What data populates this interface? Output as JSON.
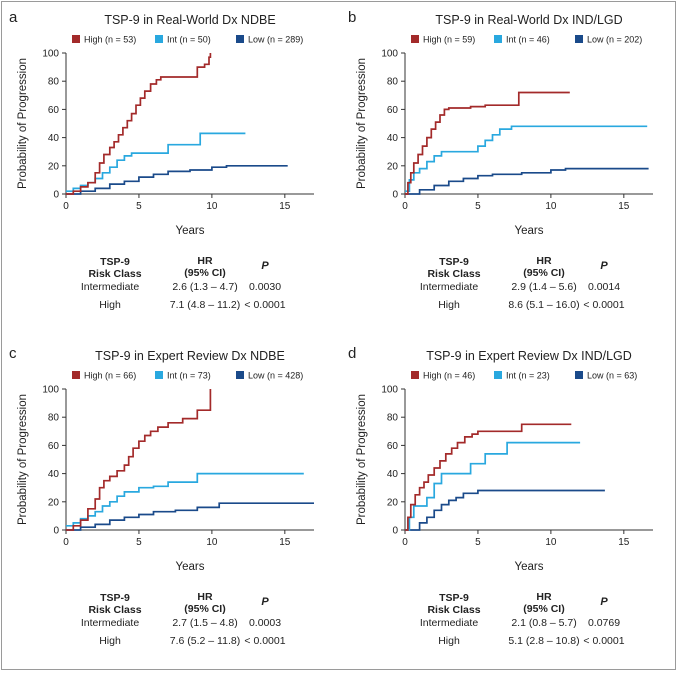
{
  "figure": {
    "table_headers": {
      "risk_class_line1": "TSP-9",
      "risk_class_line2": "Risk Class",
      "hr_line1": "HR",
      "hr_line2": "(95% CI)",
      "p": "P"
    },
    "rows": [
      "Intermediate",
      "High"
    ]
  },
  "chart_data": [
    {
      "letter": "a",
      "type": "line",
      "title": "TSP-9 in Real-World Dx NDBE",
      "xlabel": "Years",
      "ylabel": "Probability of Progression",
      "xlim": [
        0,
        17
      ],
      "ylim": [
        0,
        100
      ],
      "xticks": [
        0,
        5,
        10,
        15
      ],
      "yticks": [
        0,
        20,
        40,
        60,
        80,
        100
      ],
      "legend": [
        "High (n = 53)",
        "Int (n = 50)",
        "Low (n = 289)"
      ],
      "colors": [
        "#a32a2a",
        "#29a8df",
        "#1a4a8a"
      ],
      "series": [
        {
          "name": "High",
          "color": "#a32a2a",
          "points": [
            [
              0,
              0
            ],
            [
              0.5,
              2
            ],
            [
              1,
              5
            ],
            [
              1.5,
              8
            ],
            [
              2,
              15
            ],
            [
              2.3,
              22
            ],
            [
              2.6,
              28
            ],
            [
              3,
              33
            ],
            [
              3.3,
              37
            ],
            [
              3.6,
              42
            ],
            [
              3.9,
              47
            ],
            [
              4.2,
              52
            ],
            [
              4.5,
              57
            ],
            [
              4.8,
              63
            ],
            [
              5.1,
              68
            ],
            [
              5.4,
              73
            ],
            [
              5.8,
              78
            ],
            [
              6.2,
              81
            ],
            [
              6.5,
              83
            ],
            [
              9,
              83
            ],
            [
              9,
              90
            ],
            [
              9.5,
              92
            ],
            [
              9.8,
              97
            ],
            [
              9.9,
              100
            ]
          ]
        },
        {
          "name": "Int",
          "color": "#29a8df",
          "points": [
            [
              0,
              2
            ],
            [
              0.5,
              4
            ],
            [
              1,
              6
            ],
            [
              1.5,
              8
            ],
            [
              2,
              11
            ],
            [
              2.5,
              15
            ],
            [
              3,
              19
            ],
            [
              3.5,
              24
            ],
            [
              4,
              27
            ],
            [
              4.5,
              29
            ],
            [
              7,
              29
            ],
            [
              7,
              35
            ],
            [
              9.2,
              35
            ],
            [
              9.2,
              43
            ],
            [
              12.3,
              43
            ]
          ]
        },
        {
          "name": "Low",
          "color": "#1a4a8a",
          "points": [
            [
              0,
              0
            ],
            [
              1,
              2
            ],
            [
              2,
              4
            ],
            [
              3,
              7
            ],
            [
              4,
              9
            ],
            [
              5,
              12
            ],
            [
              6,
              14
            ],
            [
              7,
              16
            ],
            [
              8.5,
              17
            ],
            [
              10,
              19
            ],
            [
              11,
              20
            ],
            [
              15.2,
              20
            ]
          ]
        }
      ],
      "hr_rows": [
        {
          "label": "Intermediate",
          "hr": "2.6 (1.3 – 4.7)",
          "p": "0.0030"
        },
        {
          "label": "High",
          "hr": "7.1 (4.8 – 11.2)",
          "p": "< 0.0001"
        }
      ]
    },
    {
      "letter": "b",
      "type": "line",
      "title": "TSP-9 in Real-World Dx IND/LGD",
      "xlabel": "Years",
      "ylabel": "Probability of Progression",
      "xlim": [
        0,
        17
      ],
      "ylim": [
        0,
        100
      ],
      "xticks": [
        0,
        5,
        10,
        15
      ],
      "yticks": [
        0,
        20,
        40,
        60,
        80,
        100
      ],
      "legend": [
        "High (n = 59)",
        "Int (n = 46)",
        "Low (n = 202)"
      ],
      "colors": [
        "#a32a2a",
        "#29a8df",
        "#1a4a8a"
      ],
      "series": [
        {
          "name": "High",
          "color": "#a32a2a",
          "points": [
            [
              0,
              0
            ],
            [
              0.2,
              8
            ],
            [
              0.4,
              15
            ],
            [
              0.6,
              22
            ],
            [
              0.9,
              28
            ],
            [
              1.2,
              34
            ],
            [
              1.5,
              40
            ],
            [
              1.8,
              46
            ],
            [
              2.1,
              51
            ],
            [
              2.4,
              56
            ],
            [
              2.7,
              60
            ],
            [
              3,
              61
            ],
            [
              4.5,
              62
            ],
            [
              5.5,
              63
            ],
            [
              7.8,
              63
            ],
            [
              7.8,
              72
            ],
            [
              11.3,
              72
            ]
          ]
        },
        {
          "name": "Int",
          "color": "#29a8df",
          "points": [
            [
              0,
              2
            ],
            [
              0.3,
              10
            ],
            [
              0.6,
              15
            ],
            [
              1,
              18
            ],
            [
              1.5,
              23
            ],
            [
              2,
              27
            ],
            [
              2.5,
              30
            ],
            [
              4.5,
              30
            ],
            [
              5,
              34
            ],
            [
              5.5,
              38
            ],
            [
              6,
              42
            ],
            [
              6.5,
              46
            ],
            [
              7.3,
              48
            ],
            [
              16.6,
              48
            ]
          ]
        },
        {
          "name": "Low",
          "color": "#1a4a8a",
          "points": [
            [
              0,
              0
            ],
            [
              1,
              3
            ],
            [
              2,
              6
            ],
            [
              3,
              9
            ],
            [
              4,
              11
            ],
            [
              5,
              13
            ],
            [
              6,
              14
            ],
            [
              8,
              15
            ],
            [
              10,
              17
            ],
            [
              11,
              18
            ],
            [
              16.7,
              18
            ]
          ]
        }
      ],
      "hr_rows": [
        {
          "label": "Intermediate",
          "hr": "2.9 (1.4 – 5.6)",
          "p": "0.0014"
        },
        {
          "label": "High",
          "hr": "8.6 (5.1 – 16.0)",
          "p": "< 0.0001"
        }
      ]
    },
    {
      "letter": "c",
      "type": "line",
      "title": "TSP-9 in Expert Review Dx NDBE",
      "xlabel": "Years",
      "ylabel": "Probability of Progression",
      "xlim": [
        0,
        17
      ],
      "ylim": [
        0,
        100
      ],
      "xticks": [
        0,
        5,
        10,
        15
      ],
      "yticks": [
        0,
        20,
        40,
        60,
        80,
        100
      ],
      "legend": [
        "High (n = 66)",
        "Int (n = 73)",
        "Low (n = 428)"
      ],
      "colors": [
        "#a32a2a",
        "#29a8df",
        "#1a4a8a"
      ],
      "series": [
        {
          "name": "High",
          "color": "#a32a2a",
          "points": [
            [
              0,
              0
            ],
            [
              0.5,
              3
            ],
            [
              1,
              7
            ],
            [
              1.5,
              15
            ],
            [
              2,
              22
            ],
            [
              2.3,
              30
            ],
            [
              2.6,
              35
            ],
            [
              3,
              38
            ],
            [
              3.5,
              42
            ],
            [
              4,
              46
            ],
            [
              4.3,
              52
            ],
            [
              4.6,
              58
            ],
            [
              5,
              63
            ],
            [
              5.4,
              67
            ],
            [
              5.8,
              70
            ],
            [
              6.3,
              73
            ],
            [
              7,
              76
            ],
            [
              8,
              79
            ],
            [
              9,
              79
            ],
            [
              9,
              85
            ],
            [
              9.8,
              85
            ],
            [
              9.9,
              100
            ]
          ]
        },
        {
          "name": "Int",
          "color": "#29a8df",
          "points": [
            [
              0,
              3
            ],
            [
              0.5,
              5
            ],
            [
              1,
              8
            ],
            [
              1.5,
              10
            ],
            [
              2,
              13
            ],
            [
              2.5,
              17
            ],
            [
              3,
              20
            ],
            [
              3.5,
              24
            ],
            [
              4,
              27
            ],
            [
              5,
              30
            ],
            [
              6,
              31
            ],
            [
              7,
              34
            ],
            [
              9,
              34
            ],
            [
              9,
              40
            ],
            [
              16.3,
              40
            ]
          ]
        },
        {
          "name": "Low",
          "color": "#1a4a8a",
          "points": [
            [
              0,
              0
            ],
            [
              1,
              2
            ],
            [
              2,
              4
            ],
            [
              3,
              7
            ],
            [
              4,
              9
            ],
            [
              5,
              11
            ],
            [
              6,
              13
            ],
            [
              7.5,
              14
            ],
            [
              9,
              16
            ],
            [
              10.5,
              19
            ],
            [
              17,
              19
            ]
          ]
        }
      ],
      "hr_rows": [
        {
          "label": "Intermediate",
          "hr": "2.7 (1.5 – 4.8)",
          "p": "0.0003"
        },
        {
          "label": "High",
          "hr": "7.6 (5.2 – 11.8)",
          "p": "< 0.0001"
        }
      ]
    },
    {
      "letter": "d",
      "type": "line",
      "title": "TSP-9 in Expert Review Dx IND/LGD",
      "xlabel": "Years",
      "ylabel": "Probability of Progression",
      "xlim": [
        0,
        17
      ],
      "ylim": [
        0,
        100
      ],
      "xticks": [
        0,
        5,
        10,
        15
      ],
      "yticks": [
        0,
        20,
        40,
        60,
        80,
        100
      ],
      "legend": [
        "High (n = 46)",
        "Int (n = 23)",
        "Low (n = 63)"
      ],
      "colors": [
        "#a32a2a",
        "#29a8df",
        "#1a4a8a"
      ],
      "series": [
        {
          "name": "High",
          "color": "#a32a2a",
          "points": [
            [
              0,
              0
            ],
            [
              0.2,
              9
            ],
            [
              0.4,
              18
            ],
            [
              0.7,
              25
            ],
            [
              1,
              30
            ],
            [
              1.3,
              34
            ],
            [
              1.6,
              39
            ],
            [
              2,
              44
            ],
            [
              2.4,
              49
            ],
            [
              2.8,
              54
            ],
            [
              3.2,
              58
            ],
            [
              3.6,
              62
            ],
            [
              4.1,
              66
            ],
            [
              4.6,
              68
            ],
            [
              5,
              70
            ],
            [
              8,
              70
            ],
            [
              8,
              75
            ],
            [
              11.4,
              75
            ]
          ]
        },
        {
          "name": "Int",
          "color": "#29a8df",
          "points": [
            [
              0,
              0
            ],
            [
              0.3,
              9
            ],
            [
              0.6,
              17
            ],
            [
              1.2,
              17
            ],
            [
              1.5,
              23
            ],
            [
              2,
              33
            ],
            [
              2.5,
              40
            ],
            [
              4.5,
              40
            ],
            [
              4.5,
              47
            ],
            [
              5.5,
              47
            ],
            [
              5.5,
              54
            ],
            [
              7,
              54
            ],
            [
              7,
              62
            ],
            [
              12,
              62
            ]
          ]
        },
        {
          "name": "Low",
          "color": "#1a4a8a",
          "points": [
            [
              0,
              0
            ],
            [
              1,
              5
            ],
            [
              1.5,
              9
            ],
            [
              2,
              14
            ],
            [
              2.5,
              18
            ],
            [
              3,
              21
            ],
            [
              3.5,
              23
            ],
            [
              4,
              26
            ],
            [
              5,
              28
            ],
            [
              13.7,
              28
            ]
          ]
        }
      ],
      "hr_rows": [
        {
          "label": "Intermediate",
          "hr": "2.1 (0.8 – 5.7)",
          "p": "0.0769"
        },
        {
          "label": "High",
          "hr": "5.1 (2.8 – 10.8)",
          "p": "< 0.0001"
        }
      ]
    }
  ]
}
